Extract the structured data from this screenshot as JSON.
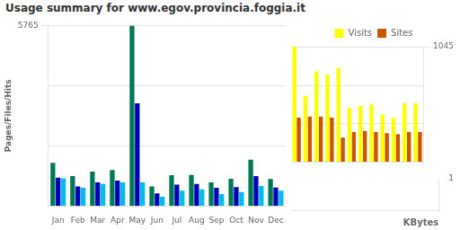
{
  "chart_data": [
    {
      "type": "bar",
      "title": "Usage summary for www.egov.provincia.foggia.it",
      "ylabel": "Pages/Files/Hits",
      "categories": [
        "Jan",
        "Feb",
        "Mar",
        "Apr",
        "May",
        "Jun",
        "Jul",
        "Aug",
        "Sep",
        "Oct",
        "Nov",
        "Dec"
      ],
      "series": [
        {
          "name": "Hits",
          "color": "#007755",
          "values": [
            1380,
            950,
            1100,
            1150,
            5765,
            620,
            980,
            990,
            750,
            870,
            1480,
            860
          ]
        },
        {
          "name": "Files",
          "color": "#0000bb",
          "values": [
            900,
            620,
            750,
            810,
            3280,
            400,
            680,
            700,
            580,
            600,
            950,
            590
          ]
        },
        {
          "name": "Pages",
          "color": "#00bbee",
          "values": [
            880,
            580,
            700,
            750,
            750,
            290,
            490,
            530,
            380,
            440,
            640,
            490
          ]
        }
      ],
      "ylim": [
        0,
        5765
      ],
      "yticks": [
        5765
      ],
      "grid": true
    },
    {
      "type": "bar",
      "categories": [
        "Jan",
        "Feb",
        "Mar",
        "Apr",
        "May",
        "Jun",
        "Jul",
        "Aug",
        "Sep",
        "Oct",
        "Nov",
        "Dec"
      ],
      "series": [
        {
          "name": "Visits",
          "color": "#ffff00",
          "values": [
            1045,
            600,
            820,
            790,
            850,
            490,
            510,
            520,
            430,
            400,
            530,
            530
          ]
        },
        {
          "name": "Sites",
          "color": "#cc5500",
          "values": [
            400,
            410,
            410,
            400,
            220,
            270,
            280,
            270,
            260,
            250,
            270,
            270
          ]
        }
      ],
      "ylim": [
        0,
        1045
      ],
      "yticks": [
        1045
      ],
      "grid": true,
      "legend": "top",
      "tick_labels": "y"
    },
    {
      "type": "bar",
      "xlabel": "KBytes",
      "ylim": [
        0,
        1
      ],
      "yticks": [
        1
      ],
      "tick_labels": "y"
    }
  ]
}
